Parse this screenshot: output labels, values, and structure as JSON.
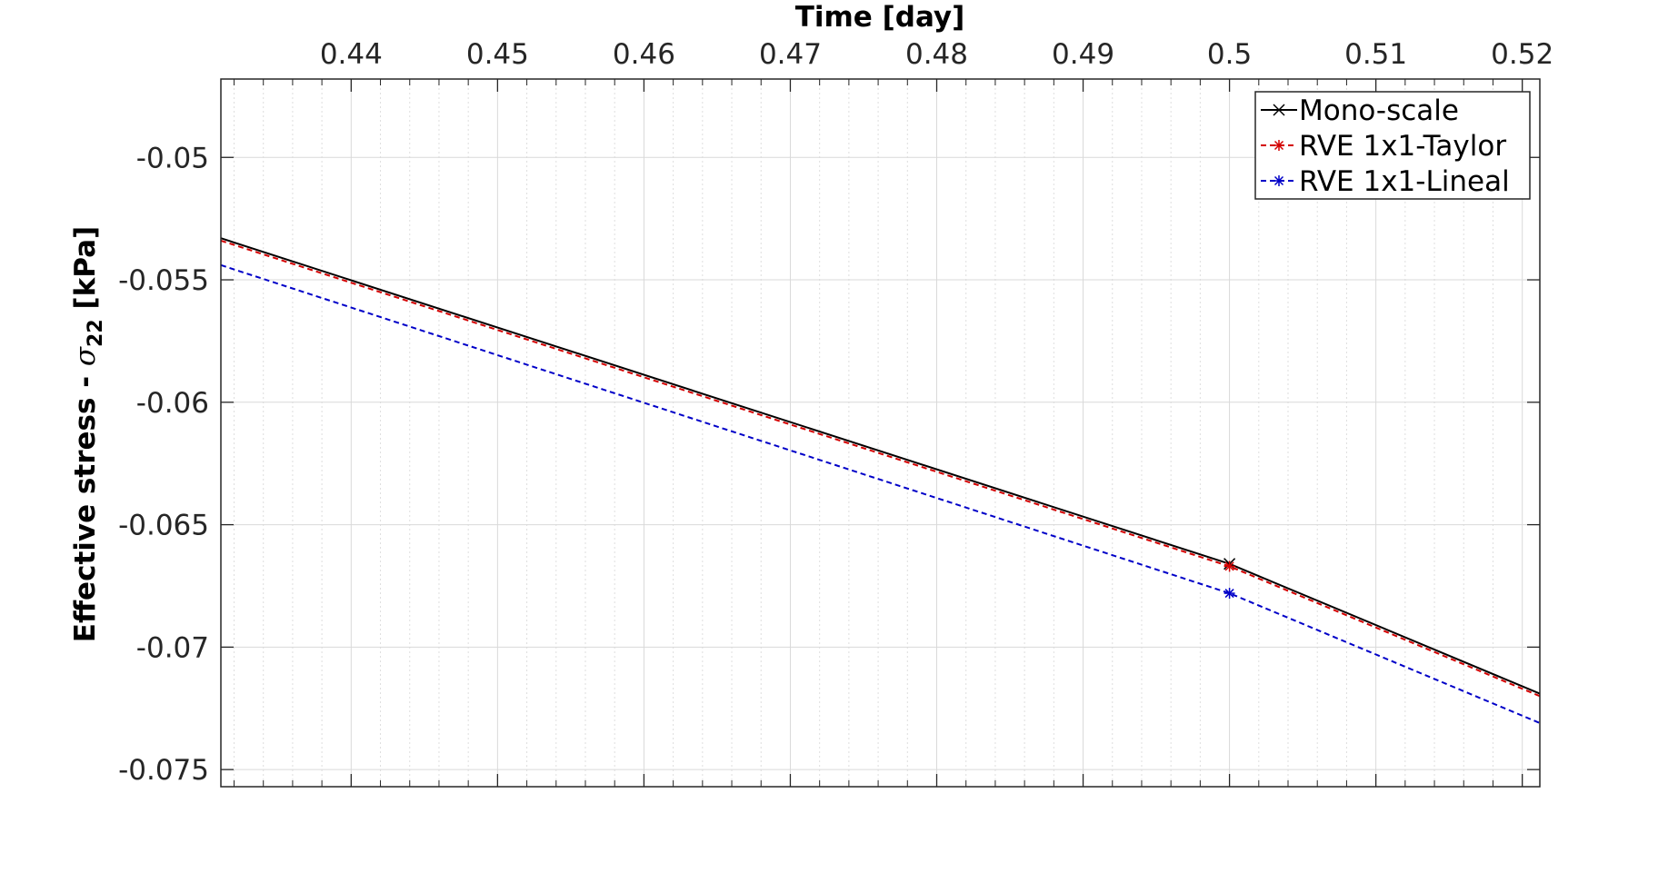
{
  "chart_data": {
    "type": "line",
    "xlabel": "Time [day]",
    "ylabel_main": "Effective stress - ",
    "ylabel_sigma": "σ",
    "ylabel_sub": "22",
    "ylabel_unit": " [kPa]",
    "xlim": [
      0.4311,
      0.5212
    ],
    "ylim": [
      -0.0757,
      -0.0468
    ],
    "x_ticks": [
      {
        "value": 0.44,
        "label": "0.44"
      },
      {
        "value": 0.45,
        "label": "0.45"
      },
      {
        "value": 0.46,
        "label": "0.46"
      },
      {
        "value": 0.47,
        "label": "0.47"
      },
      {
        "value": 0.48,
        "label": "0.48"
      },
      {
        "value": 0.49,
        "label": "0.49"
      },
      {
        "value": 0.5,
        "label": "0.5"
      },
      {
        "value": 0.51,
        "label": "0.51"
      },
      {
        "value": 0.52,
        "label": "0.52"
      }
    ],
    "y_ticks": [
      {
        "value": -0.05,
        "label": "-0.05"
      },
      {
        "value": -0.055,
        "label": "-0.055"
      },
      {
        "value": -0.06,
        "label": "-0.06"
      },
      {
        "value": -0.065,
        "label": "-0.065"
      },
      {
        "value": -0.07,
        "label": "-0.07"
      },
      {
        "value": -0.075,
        "label": "-0.075"
      }
    ],
    "x_minor_step": 0.002,
    "grid": true,
    "legend_position": "top-right",
    "series": [
      {
        "name": "Mono-scale",
        "color": "#000000",
        "dash": "solid",
        "marker": "x",
        "x": [
          0.4311,
          0.5,
          0.5212
        ],
        "y": [
          -0.0533,
          -0.0666,
          -0.0719
        ],
        "marker_x": [
          0.5
        ]
      },
      {
        "name": "RVE 1x1-Taylor",
        "color": "#d40000",
        "dash": "dashed",
        "marker": "*",
        "x": [
          0.4311,
          0.5,
          0.5212
        ],
        "y": [
          -0.0534,
          -0.0667,
          -0.072
        ],
        "marker_x": [
          0.5
        ]
      },
      {
        "name": "RVE 1x1-Lineal",
        "color": "#0000c8",
        "dash": "dashed",
        "marker": "*",
        "x": [
          0.4311,
          0.5,
          0.5212
        ],
        "y": [
          -0.0544,
          -0.0678,
          -0.0731
        ],
        "marker_x": [
          0.5
        ]
      }
    ]
  }
}
